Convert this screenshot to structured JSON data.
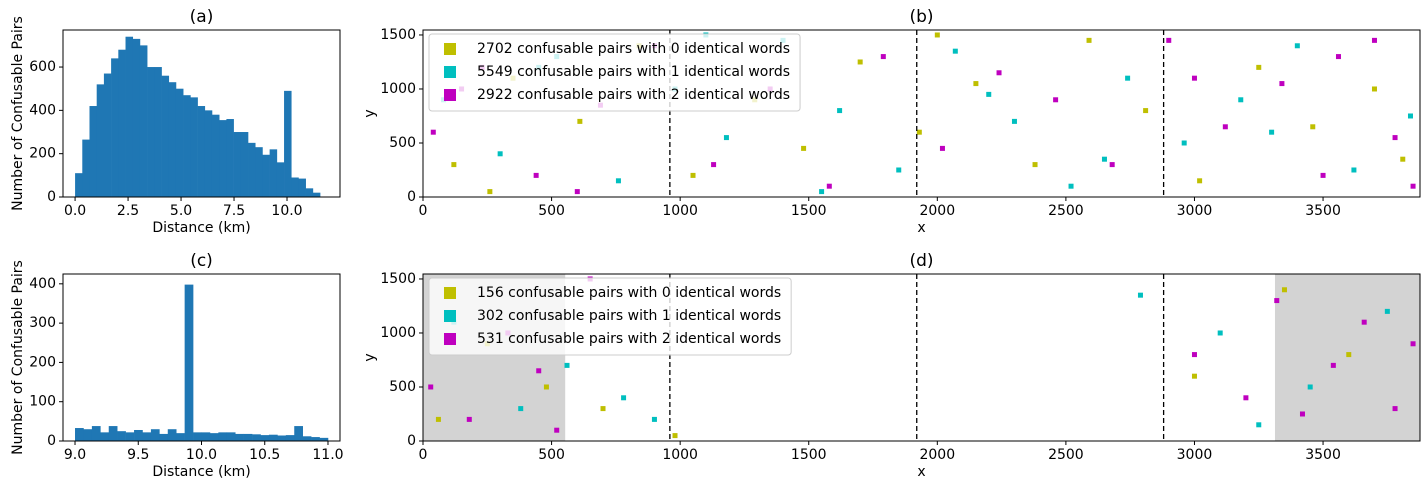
{
  "chart_data": [
    {
      "type": "histogram",
      "title": "(a)",
      "x_label": "Distance (km)",
      "y_label": "Number of Confusable Pairs",
      "color": "#1f77b4",
      "bins": [
        0,
        0.34,
        0.68,
        1.02,
        1.36,
        1.7,
        2.04,
        2.38,
        2.72,
        3.06,
        3.4,
        3.74,
        4.08,
        4.42,
        4.76,
        5.1,
        5.44,
        5.78,
        6.12,
        6.46,
        6.8,
        7.14,
        7.48,
        7.82,
        8.16,
        8.5,
        8.84,
        9.18,
        9.52,
        9.86,
        10.2,
        10.54,
        10.88,
        11.22,
        11.56
      ],
      "values": [
        110,
        265,
        420,
        520,
        570,
        640,
        680,
        740,
        730,
        700,
        600,
        600,
        560,
        530,
        500,
        470,
        460,
        420,
        400,
        380,
        355,
        360,
        300,
        300,
        250,
        230,
        195,
        220,
        160,
        490,
        90,
        85,
        40,
        20
      ],
      "xlim": [
        -0.57,
        12.5
      ],
      "ylim": [
        0,
        771
      ],
      "xticks": [
        {
          "value": 0,
          "label": "0.0"
        },
        {
          "value": 2.5,
          "label": "2.5"
        },
        {
          "value": 5,
          "label": "5.0"
        },
        {
          "value": 7.5,
          "label": "7.5"
        },
        {
          "value": 10,
          "label": "10.0"
        }
      ],
      "yticks": [
        0,
        200,
        400,
        600
      ]
    },
    {
      "type": "scatter",
      "title": "(b)",
      "x_label": "x",
      "y_label": "y",
      "legend": "upper left",
      "xlim": [
        0,
        3877
      ],
      "ylim": [
        0,
        1546
      ],
      "xticks": [
        0,
        500,
        1000,
        1500,
        2000,
        2500,
        3000,
        3500
      ],
      "yticks": [
        0,
        500,
        1000,
        1500
      ],
      "vlines": [
        960,
        1920,
        2880
      ],
      "series": [
        {
          "name": "2702 confusable pairs with 0 identical words",
          "color": "#bfbf00",
          "x": [
            120,
            350,
            610,
            840,
            1050,
            1290,
            1480,
            1700,
            1930,
            2150,
            2380,
            2590,
            2810,
            3020,
            3250,
            3460,
            3700,
            3810,
            260,
            2000
          ],
          "values": [
            300,
            1100,
            700,
            1400,
            200,
            900,
            450,
            1250,
            600,
            1050,
            300,
            1450,
            800,
            150,
            1200,
            650,
            1000,
            350,
            50,
            1500
          ]
        },
        {
          "name": "5549 confusable pairs with 1 identical words",
          "color": "#00bfbf",
          "x": [
            80,
            300,
            520,
            760,
            980,
            1180,
            1400,
            1620,
            1850,
            2070,
            2300,
            2520,
            2740,
            2960,
            3180,
            3400,
            3620,
            3840,
            450,
            1550,
            2650,
            3300,
            1100,
            2200
          ],
          "values": [
            900,
            400,
            1300,
            150,
            1000,
            550,
            1450,
            800,
            250,
            1350,
            700,
            100,
            1100,
            500,
            900,
            1400,
            250,
            750,
            1200,
            50,
            350,
            600,
            1500,
            950
          ]
        },
        {
          "name": "2922 confusable pairs with 2 identical words",
          "color": "#bf00bf",
          "x": [
            40,
            230,
            440,
            690,
            900,
            1130,
            1350,
            1580,
            1790,
            2020,
            2240,
            2460,
            2680,
            2900,
            3120,
            3340,
            3560,
            3780,
            3500,
            3700,
            150,
            600,
            3000,
            3850
          ],
          "values": [
            600,
            1200,
            200,
            850,
            1400,
            300,
            1000,
            100,
            1300,
            450,
            1150,
            900,
            300,
            1450,
            650,
            1050,
            1300,
            550,
            200,
            1450,
            1000,
            50,
            1100,
            100
          ]
        }
      ]
    },
    {
      "type": "histogram",
      "title": "(c)",
      "x_label": "Distance (km)",
      "y_label": "Number of Confusable Pairs",
      "color": "#1f77b4",
      "bins": [
        9,
        9.0667,
        9.1333,
        9.2,
        9.2667,
        9.3333,
        9.4,
        9.4667,
        9.5333,
        9.6,
        9.6667,
        9.7333,
        9.8,
        9.8667,
        9.9333,
        10,
        10.0667,
        10.1333,
        10.2,
        10.2667,
        10.3333,
        10.4,
        10.4667,
        10.5333,
        10.6,
        10.6667,
        10.7333,
        10.8,
        10.8667,
        10.9333,
        11
      ],
      "values": [
        33,
        30,
        38,
        22,
        38,
        25,
        22,
        28,
        22,
        30,
        18,
        30,
        20,
        398,
        22,
        22,
        20,
        22,
        22,
        18,
        18,
        17,
        15,
        16,
        14,
        15,
        38,
        12,
        10,
        8
      ],
      "xlim": [
        8.905,
        11.095
      ],
      "ylim": [
        0,
        425
      ],
      "xticks": [
        {
          "value": 9,
          "label": "9.0"
        },
        9.5,
        {
          "value": 10,
          "label": "10.0"
        },
        10.5,
        {
          "value": 11,
          "label": "11.0"
        }
      ],
      "yticks": [
        0,
        100,
        200,
        300,
        400
      ]
    },
    {
      "type": "scatter",
      "title": "(d)",
      "x_label": "x",
      "y_label": "y",
      "legend": "upper left",
      "xlim": [
        0,
        3877
      ],
      "ylim": [
        0,
        1546
      ],
      "xticks": [
        0,
        500,
        1000,
        1500,
        2000,
        2500,
        3000,
        3500
      ],
      "yticks": [
        0,
        500,
        1000,
        1500
      ],
      "vlines": [
        960,
        1920,
        2880
      ],
      "shaded_regions": [
        [
          0,
          553
        ],
        [
          3313,
          3877
        ]
      ],
      "shade_color": "#d3d3d3",
      "series": [
        {
          "name": "156 confusable pairs with 0 identical words",
          "color": "#bfbf00",
          "x": [
            60,
            250,
            480,
            700,
            980,
            3000,
            3350,
            3600
          ],
          "values": [
            200,
            900,
            500,
            300,
            50,
            600,
            1400,
            800
          ]
        },
        {
          "name": "302 confusable pairs with 1 identical words",
          "color": "#00bfbf",
          "x": [
            120,
            380,
            560,
            780,
            900,
            2790,
            3100,
            3250,
            3450,
            3750
          ],
          "values": [
            1100,
            300,
            700,
            400,
            200,
            1350,
            1000,
            150,
            500,
            1200
          ]
        },
        {
          "name": "531 confusable pairs with 2 identical words",
          "color": "#bf00bf",
          "x": [
            30,
            180,
            330,
            450,
            520,
            650,
            3000,
            3200,
            3320,
            3420,
            3540,
            3660,
            3780,
            3850
          ],
          "values": [
            500,
            200,
            1000,
            650,
            100,
            1500,
            800,
            400,
            1300,
            250,
            700,
            1100,
            300,
            900
          ]
        }
      ]
    }
  ]
}
